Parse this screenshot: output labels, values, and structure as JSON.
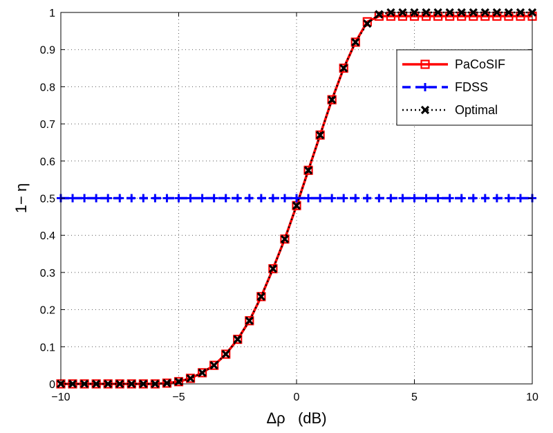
{
  "chart_data": {
    "type": "line",
    "title": "",
    "xlabel": "Δρ   (dB)",
    "ylabel": "1− η",
    "xlim": [
      -10,
      10
    ],
    "ylim": [
      0,
      1
    ],
    "xticks": [
      -10,
      -5,
      0,
      5,
      10
    ],
    "xtick_labels": [
      "−10",
      "−5",
      "0",
      "5",
      "10"
    ],
    "yticks": [
      0,
      0.1,
      0.2,
      0.3,
      0.4,
      0.5,
      0.6,
      0.7,
      0.8,
      0.9,
      1
    ],
    "ytick_labels": [
      "0",
      "0.1",
      "0.2",
      "0.3",
      "0.4",
      "0.5",
      "0.6",
      "0.7",
      "0.8",
      "0.9",
      "1"
    ],
    "grid": true,
    "legend_position": "top-right",
    "x": [
      -10,
      -9.5,
      -9,
      -8.5,
      -8,
      -7.5,
      -7,
      -6.5,
      -6,
      -5.5,
      -5,
      -4.5,
      -4,
      -3.5,
      -3,
      -2.5,
      -2,
      -1.5,
      -1,
      -0.5,
      0,
      0.5,
      1,
      1.5,
      2,
      2.5,
      3,
      3.5,
      4,
      4.5,
      5,
      5.5,
      6,
      6.5,
      7,
      7.5,
      8,
      8.5,
      9,
      9.5,
      10
    ],
    "series": [
      {
        "name": "PaCoSIF",
        "color": "#ff0000",
        "line": "solid",
        "marker": "square",
        "values": [
          0,
          0,
          0,
          0,
          0,
          0,
          0,
          0,
          0,
          0.002,
          0.006,
          0.015,
          0.03,
          0.05,
          0.08,
          0.12,
          0.17,
          0.235,
          0.31,
          0.39,
          0.48,
          0.575,
          0.67,
          0.765,
          0.85,
          0.92,
          0.975,
          0.99,
          0.99,
          0.99,
          0.99,
          0.99,
          0.99,
          0.99,
          0.99,
          0.99,
          0.99,
          0.99,
          0.99,
          0.99,
          0.99
        ]
      },
      {
        "name": "FDSS",
        "color": "#0000ff",
        "line": "dashed",
        "marker": "plus",
        "values": [
          0.5,
          0.5,
          0.5,
          0.5,
          0.5,
          0.5,
          0.5,
          0.5,
          0.5,
          0.5,
          0.5,
          0.5,
          0.5,
          0.5,
          0.5,
          0.5,
          0.5,
          0.5,
          0.5,
          0.5,
          0.5,
          0.5,
          0.5,
          0.5,
          0.5,
          0.5,
          0.5,
          0.5,
          0.5,
          0.5,
          0.5,
          0.5,
          0.5,
          0.5,
          0.5,
          0.5,
          0.5,
          0.5,
          0.5,
          0.5,
          0.5
        ]
      },
      {
        "name": "Optimal",
        "color": "#000000",
        "line": "dotted",
        "marker": "x",
        "values": [
          0,
          0,
          0,
          0,
          0,
          0,
          0,
          0,
          0,
          0.002,
          0.006,
          0.015,
          0.03,
          0.05,
          0.08,
          0.12,
          0.17,
          0.235,
          0.31,
          0.39,
          0.48,
          0.575,
          0.67,
          0.765,
          0.85,
          0.92,
          0.97,
          0.995,
          1,
          1,
          1,
          1,
          1,
          1,
          1,
          1,
          1,
          1,
          1,
          1,
          1
        ]
      }
    ]
  }
}
